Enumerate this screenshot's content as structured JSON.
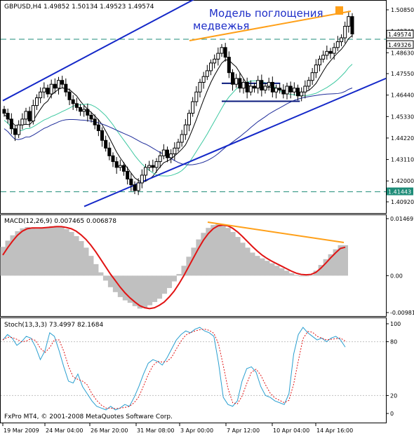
{
  "chart_data": {
    "type": "candlestick",
    "symbol_header": "GBPUSD,H4  1.49852 1.50134 1.49523 1.49574",
    "annotation_line1": "Модель поглощения",
    "annotation_line2": "медвежья",
    "price_axis": {
      "ticks": [
        "1.50850",
        "1.49740",
        "1.48630",
        "1.47550",
        "1.46440",
        "1.45330",
        "1.44220",
        "1.43110",
        "1.42000",
        "1.40920"
      ],
      "ylim": [
        1.4092,
        1.5085
      ],
      "current_price_label": "1.49574",
      "ask_label": "1.49326",
      "level_label": "1.41443",
      "level": 1.41443,
      "dashed_level": 1.4933
    },
    "time_axis": [
      "19 Mar 2009",
      "24 Mar 04:00",
      "26 Mar 20:00",
      "31 Mar 08:00",
      "3 Apr 00:00",
      "7 Apr 12:00",
      "10 Apr 04:00",
      "14 Apr 16:00"
    ],
    "close_series": [
      1.455,
      1.452,
      1.447,
      1.444,
      1.449,
      1.452,
      1.456,
      1.451,
      1.459,
      1.463,
      1.466,
      1.468,
      1.465,
      1.47,
      1.468,
      1.472,
      1.47,
      1.466,
      1.462,
      1.46,
      1.458,
      1.456,
      1.457,
      1.454,
      1.452,
      1.449,
      1.446,
      1.441,
      1.437,
      1.433,
      1.43,
      1.427,
      1.428,
      1.425,
      1.421,
      1.418,
      1.415,
      1.419,
      1.423,
      1.427,
      1.428,
      1.427,
      1.43,
      1.433,
      1.436,
      1.432,
      1.434,
      1.437,
      1.44,
      1.444,
      1.449,
      1.455,
      1.461,
      1.466,
      1.471,
      1.474,
      1.477,
      1.481,
      1.483,
      1.486,
      1.489,
      1.484,
      1.476,
      1.47,
      1.473,
      1.468,
      1.471,
      1.466,
      1.469,
      1.468,
      1.472,
      1.467,
      1.469,
      1.471,
      1.466,
      1.468,
      1.467,
      1.465,
      1.469,
      1.466,
      1.468,
      1.464,
      1.466,
      1.469,
      1.472,
      1.476,
      1.48,
      1.483,
      1.485,
      1.487,
      1.486,
      1.489,
      1.492,
      1.494,
      1.5,
      1.505,
      1.496
    ],
    "trend_upper": [
      1.4615,
      1.5075
    ],
    "trend_lower": [
      1.409,
      1.4694
    ],
    "range_box": [
      1.4612,
      1.4705
    ],
    "macd": {
      "label": "MACD(12,26,9) 0.007465 0.006878",
      "ticks": [
        "0.014697",
        "0.00",
        "-0.009815"
      ],
      "ylim": [
        -0.009815,
        0.014697
      ],
      "main": [
        0.007,
        0.0085,
        0.0098,
        0.0108,
        0.0115,
        0.0118,
        0.0116,
        0.0114,
        0.0116,
        0.0118,
        0.012,
        0.0121,
        0.0118,
        0.0113,
        0.0106,
        0.0096,
        0.0084,
        0.0068,
        0.0048,
        0.0028,
        0.0008,
        -0.0012,
        -0.0028,
        -0.004,
        -0.0052,
        -0.006,
        -0.0066,
        -0.0074,
        -0.008,
        -0.0078,
        -0.0072,
        -0.0064,
        -0.0056,
        -0.0044,
        -0.003,
        -0.0014,
        0.0004,
        0.0024,
        0.0046,
        0.0068,
        0.0088,
        0.0104,
        0.0116,
        0.0123,
        0.0126,
        0.0122,
        0.0116,
        0.0106,
        0.0094,
        0.008,
        0.0068,
        0.0056,
        0.0048,
        0.0042,
        0.0036,
        0.003,
        0.0024,
        0.0018,
        0.0012,
        0.0006,
        0.0002,
        0.0,
        0.0,
        0.0002,
        0.0012,
        0.0026,
        0.004,
        0.0052,
        0.0064,
        0.0074,
        0.0074
      ],
      "signal": [
        0.005,
        0.0068,
        0.0084,
        0.0098,
        0.0108,
        0.0114,
        0.0116,
        0.0116,
        0.0116,
        0.0117,
        0.0118,
        0.0119,
        0.0119,
        0.0117,
        0.0114,
        0.0108,
        0.0099,
        0.0088,
        0.0074,
        0.0058,
        0.004,
        0.0022,
        0.0004,
        -0.0012,
        -0.0028,
        -0.0042,
        -0.0054,
        -0.0064,
        -0.0073,
        -0.0078,
        -0.008,
        -0.0078,
        -0.0072,
        -0.0064,
        -0.0052,
        -0.0038,
        -0.002,
        0.0,
        0.0022,
        0.0044,
        0.0066,
        0.0086,
        0.0102,
        0.0114,
        0.0121,
        0.0123,
        0.0121,
        0.0115,
        0.0106,
        0.0095,
        0.0083,
        0.0071,
        0.006,
        0.005,
        0.0042,
        0.0035,
        0.0029,
        0.0023,
        0.0017,
        0.0011,
        0.0006,
        0.0003,
        0.0002,
        0.0003,
        0.0008,
        0.0018,
        0.003,
        0.0043,
        0.0055,
        0.0066,
        0.0069
      ]
    },
    "stoch": {
      "label": "Stoch(13,3,3) 73.4997 82.1684",
      "ticks": [
        "100",
        "80",
        "20",
        "0"
      ],
      "ylim": [
        0,
        100
      ],
      "main": [
        82,
        88,
        84,
        76,
        80,
        86,
        84,
        74,
        60,
        70,
        90,
        86,
        70,
        52,
        36,
        34,
        44,
        30,
        22,
        14,
        8,
        6,
        4,
        8,
        4,
        6,
        10,
        8,
        18,
        30,
        44,
        56,
        60,
        58,
        54,
        62,
        72,
        82,
        88,
        92,
        90,
        94,
        96,
        92,
        90,
        86,
        56,
        18,
        10,
        8,
        14,
        36,
        50,
        52,
        46,
        30,
        20,
        18,
        14,
        12,
        10,
        22,
        66,
        88,
        96,
        90,
        86,
        82,
        84,
        80,
        84,
        86,
        82,
        74
      ]
    },
    "copyright": "FxPro MT4, © 2001-2008 MetaQuotes Software Corp.",
    "colors": {
      "channel": "#1428c8",
      "divergence": "#ffa019",
      "macd_hist": "#c0c0c0",
      "macd_signal": "#e11414",
      "ma_fast": "#000000",
      "ma_mid": "#3cc8a0",
      "ma_slow": "#1e2c9a",
      "level": "#1e8c78"
    }
  }
}
